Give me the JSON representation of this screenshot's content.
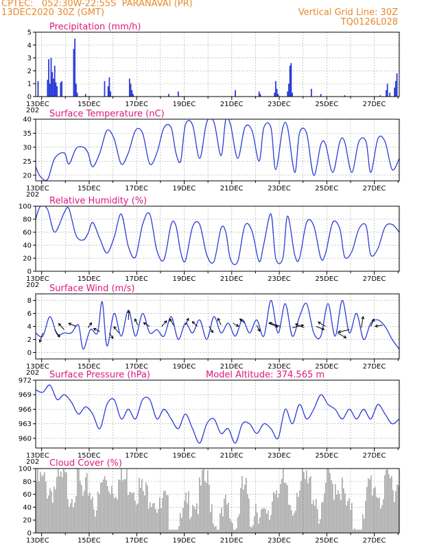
{
  "header": {
    "left_line1": "CPTEC:   052:30W-22:55S  PARANAVAI (PR)",
    "left_line2": "13DEC2020 30Z (GMT)",
    "right_line1": "Vertical Grid Line: 30Z",
    "right_line2": "TQ0126L028"
  },
  "colors": {
    "line": "#2a3bd6",
    "bar": "#2a3bd6",
    "cloud": "#a6a6a6",
    "title": "#e0147c",
    "header": "#e8892b"
  },
  "x_axis": {
    "labels": [
      "13DEC",
      "15DEC",
      "17DEC",
      "19DEC",
      "21DEC",
      "23DEC",
      "25DEC",
      "27DEC"
    ],
    "clipped_year": "202",
    "day_range": [
      13,
      28.3
    ]
  },
  "chart_data": [
    {
      "type": "bar",
      "title": "Precipitation (mm/h)",
      "ylim": [
        0,
        5
      ],
      "yticks": [
        0,
        1,
        2,
        3,
        4,
        5
      ],
      "bars": [
        [
          13.1,
          1.2
        ],
        [
          13.5,
          1.3
        ],
        [
          13.55,
          2.9
        ],
        [
          13.6,
          1.0
        ],
        [
          13.65,
          3.0
        ],
        [
          13.7,
          1.9
        ],
        [
          13.75,
          1.4
        ],
        [
          13.8,
          2.4
        ],
        [
          13.85,
          1.1
        ],
        [
          13.9,
          0.8
        ],
        [
          14.05,
          1.1
        ],
        [
          14.1,
          1.2
        ],
        [
          14.6,
          3.7
        ],
        [
          14.65,
          4.5
        ],
        [
          14.7,
          1.0
        ],
        [
          14.75,
          0.3
        ],
        [
          15.1,
          0.2
        ],
        [
          15.9,
          1.2
        ],
        [
          16.05,
          0.8
        ],
        [
          16.1,
          1.5
        ],
        [
          16.15,
          0.4
        ],
        [
          16.95,
          1.4
        ],
        [
          17.0,
          1.0
        ],
        [
          17.05,
          0.5
        ],
        [
          17.1,
          0.2
        ],
        [
          18.6,
          0.2
        ],
        [
          19.0,
          0.4
        ],
        [
          21.4,
          0.5
        ],
        [
          22.4,
          0.4
        ],
        [
          22.45,
          0.2
        ],
        [
          23.05,
          0.3
        ],
        [
          23.1,
          1.2
        ],
        [
          23.15,
          0.6
        ],
        [
          23.2,
          0.2
        ],
        [
          23.6,
          0.4
        ],
        [
          23.65,
          1.0
        ],
        [
          23.7,
          2.4
        ],
        [
          23.75,
          2.6
        ],
        [
          23.8,
          0.3
        ],
        [
          24.6,
          0.6
        ],
        [
          25.0,
          0.2
        ],
        [
          26.0,
          0.1
        ],
        [
          27.5,
          0.1
        ],
        [
          27.75,
          0.5
        ],
        [
          27.8,
          1.0
        ],
        [
          27.9,
          0.3
        ],
        [
          28.1,
          0.7
        ],
        [
          28.15,
          1.2
        ],
        [
          28.2,
          1.8
        ]
      ]
    },
    {
      "type": "line",
      "title": "Surface Temperature (nC)",
      "ylim": [
        18,
        40
      ],
      "yticks": [
        20,
        25,
        30,
        35,
        40
      ],
      "x": [
        13.0,
        13.2,
        13.5,
        13.8,
        14.2,
        14.4,
        14.7,
        15.0,
        15.2,
        15.4,
        15.7,
        16.0,
        16.3,
        16.6,
        16.9,
        17.2,
        17.5,
        17.8,
        18.1,
        18.4,
        18.7,
        18.9,
        19.1,
        19.3,
        19.6,
        19.9,
        20.2,
        20.5,
        20.8,
        21.0,
        21.2,
        21.5,
        21.8,
        22.1,
        22.4,
        22.6,
        22.9,
        23.1,
        23.4,
        23.6,
        23.9,
        24.1,
        24.4,
        24.7,
        25.0,
        25.2,
        25.5,
        25.8,
        26.0,
        26.3,
        26.6,
        26.9,
        27.1,
        27.4,
        27.7,
        28.0,
        28.3
      ],
      "y": [
        23,
        19.5,
        18.5,
        26,
        28,
        24,
        29.5,
        30,
        28,
        23,
        28,
        36,
        33,
        24,
        28,
        36,
        35,
        24,
        28,
        37,
        37,
        28,
        25,
        38,
        38,
        26,
        39,
        39,
        27,
        40,
        38,
        26,
        37,
        36,
        25,
        37,
        37,
        22,
        37,
        37,
        21,
        35,
        35,
        20,
        31,
        31,
        21,
        32,
        32,
        21,
        32,
        32,
        21,
        33,
        32,
        22,
        26
      ]
    },
    {
      "type": "line",
      "title": "Relative Humidity (%)",
      "ylim": [
        0,
        100
      ],
      "yticks": [
        0,
        20,
        40,
        60,
        80,
        100
      ],
      "x": [
        13.0,
        13.2,
        13.5,
        13.8,
        14.2,
        14.4,
        14.7,
        15.0,
        15.2,
        15.4,
        15.7,
        16.0,
        16.3,
        16.6,
        16.9,
        17.2,
        17.5,
        17.8,
        18.1,
        18.4,
        18.7,
        18.9,
        19.1,
        19.3,
        19.6,
        19.9,
        20.2,
        20.5,
        20.8,
        21.0,
        21.2,
        21.5,
        21.8,
        22.1,
        22.4,
        22.6,
        22.9,
        23.1,
        23.4,
        23.6,
        23.9,
        24.1,
        24.4,
        24.7,
        25.0,
        25.2,
        25.5,
        25.8,
        26.0,
        26.3,
        26.6,
        26.9,
        27.1,
        27.4,
        27.7,
        28.0,
        28.3
      ],
      "y": [
        80,
        100,
        95,
        60,
        90,
        96,
        55,
        48,
        58,
        75,
        50,
        28,
        52,
        88,
        38,
        22,
        72,
        88,
        32,
        18,
        72,
        70,
        30,
        16,
        68,
        72,
        25,
        15,
        66,
        60,
        18,
        15,
        70,
        62,
        15,
        42,
        88,
        20,
        20,
        85,
        25,
        20,
        75,
        70,
        20,
        28,
        75,
        65,
        22,
        30,
        65,
        70,
        25,
        35,
        68,
        72,
        60
      ]
    },
    {
      "type": "line",
      "title": "Surface Wind (m/s)",
      "ylim": [
        -1,
        9
      ],
      "yticks": [
        0,
        2,
        4,
        6,
        8
      ],
      "x": [
        13.0,
        13.3,
        13.6,
        13.9,
        14.2,
        14.5,
        14.8,
        15.0,
        15.3,
        15.6,
        15.8,
        16.0,
        16.3,
        16.6,
        16.9,
        17.2,
        17.5,
        17.8,
        18.1,
        18.4,
        18.7,
        19.0,
        19.3,
        19.6,
        19.9,
        20.2,
        20.5,
        20.8,
        21.1,
        21.4,
        21.7,
        22.0,
        22.3,
        22.6,
        22.9,
        23.2,
        23.5,
        23.8,
        24.1,
        24.4,
        24.7,
        25.0,
        25.3,
        25.6,
        25.9,
        26.2,
        26.5,
        26.8,
        27.1,
        27.4,
        27.7,
        28.0,
        28.3
      ],
      "y": [
        3,
        2.5,
        5.5,
        2.8,
        3,
        3,
        4.2,
        0.5,
        3.5,
        3,
        7.8,
        1,
        6,
        2.5,
        6.5,
        2.5,
        6,
        3,
        3.5,
        2.5,
        5.5,
        2,
        4.5,
        3,
        5,
        2,
        5.5,
        3,
        4.5,
        2.5,
        5,
        3,
        5,
        2.5,
        8,
        3,
        7.5,
        2.5,
        5.5,
        7.5,
        3,
        2.5,
        7.5,
        2.5,
        8,
        3,
        6,
        2,
        4.5,
        5,
        4,
        2,
        0.5
      ],
      "arrows": [
        [
          13.3,
          3,
          -0.5,
          -1.5
        ],
        [
          13.8,
          3.5,
          0.8,
          -1.2
        ],
        [
          14.2,
          3.5,
          -0.9,
          1
        ],
        [
          14.7,
          4,
          -1.2,
          0.5
        ],
        [
          15.2,
          3.8,
          0.6,
          0.8
        ],
        [
          15.7,
          3.2,
          -1,
          0.5
        ],
        [
          16.1,
          3,
          0.6,
          -0.9
        ],
        [
          16.5,
          3,
          -0.8,
          1
        ],
        [
          16.9,
          5,
          0.1,
          1.5
        ],
        [
          17.3,
          4.2,
          -0.5,
          1
        ],
        [
          17.8,
          4,
          -1,
          0.6
        ],
        [
          18.3,
          4,
          0.8,
          0.9
        ],
        [
          18.8,
          4.2,
          -0.6,
          1
        ],
        [
          19.3,
          4.2,
          0.5,
          1.1
        ],
        [
          19.8,
          4,
          -0.8,
          0.8
        ],
        [
          20.3,
          4,
          0.6,
          -1
        ],
        [
          20.8,
          4.2,
          -0.5,
          1.1
        ],
        [
          21.3,
          4.5,
          0.9,
          -0.5
        ],
        [
          21.8,
          4.5,
          -0.8,
          0.7
        ],
        [
          22.3,
          4.2,
          0.5,
          -1
        ],
        [
          22.8,
          4.5,
          1.5,
          -0.6
        ],
        [
          23.3,
          4,
          -1.8,
          0.6
        ],
        [
          23.8,
          3.8,
          1.8,
          0.4
        ],
        [
          24.3,
          3.8,
          -1.4,
          0.6
        ],
        [
          24.8,
          4,
          1.3,
          -0.5
        ],
        [
          25.2,
          4,
          -1.2,
          0.7
        ],
        [
          25.7,
          3,
          1.4,
          -0.8
        ],
        [
          26.2,
          3.5,
          -1.8,
          -0.4
        ],
        [
          26.7,
          3.8,
          0.3,
          1.8
        ],
        [
          27.1,
          4,
          0.5,
          1.2
        ],
        [
          27.6,
          4.2,
          -1.2,
          -0.2
        ]
      ]
    },
    {
      "type": "line",
      "title": "Surface Pressure (hPa)",
      "annotation": "Model Altitude: 374.565  m",
      "ylim": [
        958,
        972
      ],
      "yticks": [
        960,
        963,
        966,
        969,
        972
      ],
      "x": [
        13.0,
        13.3,
        13.6,
        13.9,
        14.2,
        14.5,
        14.8,
        15.1,
        15.4,
        15.7,
        16.0,
        16.3,
        16.6,
        16.9,
        17.2,
        17.5,
        17.8,
        18.1,
        18.4,
        18.7,
        19.0,
        19.3,
        19.6,
        19.9,
        20.2,
        20.5,
        20.8,
        21.1,
        21.4,
        21.7,
        22.0,
        22.3,
        22.6,
        22.9,
        23.2,
        23.5,
        23.8,
        24.1,
        24.4,
        24.7,
        25.0,
        25.3,
        25.6,
        25.9,
        26.2,
        26.5,
        26.8,
        27.1,
        27.4,
        27.7,
        28.0,
        28.3
      ],
      "y": [
        970,
        969.5,
        971,
        968,
        969,
        967.5,
        965,
        966.5,
        965,
        962,
        967,
        968,
        964,
        966,
        964,
        968,
        968,
        964,
        966,
        964,
        962,
        965,
        962,
        959,
        963,
        964,
        961,
        962,
        959,
        963,
        963,
        961,
        963,
        962,
        960,
        966,
        963,
        967,
        964,
        966,
        969,
        967,
        966,
        964,
        966,
        964,
        966,
        964,
        967,
        965,
        963,
        964
      ]
    },
    {
      "type": "bar",
      "title": "Cloud Cover (%)",
      "ylim": [
        0,
        100
      ],
      "yticks": [
        0,
        20,
        40,
        60,
        80,
        100
      ],
      "series_profile": {
        "x": [
          13.0,
          13.2,
          13.4,
          13.6,
          13.8,
          14.0,
          14.2,
          14.4,
          14.6,
          14.8,
          15.0,
          15.2,
          15.4,
          15.6,
          15.8,
          16.0,
          16.2,
          16.4,
          16.6,
          16.8,
          17.0,
          17.2,
          17.4,
          17.6,
          17.8,
          18.0,
          18.2,
          18.4,
          18.6,
          18.8,
          19.0,
          19.2,
          19.4,
          19.6,
          19.8,
          20.0,
          20.2,
          20.4,
          20.6,
          20.8,
          21.0,
          21.2,
          21.4,
          21.6,
          21.8,
          22.0,
          22.2,
          22.4,
          22.6,
          22.8,
          23.0,
          23.2,
          23.4,
          23.6,
          23.8,
          24.0,
          24.2,
          24.4,
          24.6,
          24.8,
          25.0,
          25.2,
          25.4,
          25.6,
          25.8,
          26.0,
          26.2,
          26.4,
          26.6,
          26.8,
          27.0,
          27.2,
          27.4,
          27.6,
          27.8,
          28.0,
          28.3
        ],
        "y": [
          95,
          92,
          90,
          85,
          88,
          90,
          94,
          80,
          86,
          96,
          60,
          90,
          70,
          55,
          95,
          93,
          92,
          92,
          96,
          96,
          98,
          88,
          80,
          70,
          85,
          75,
          45,
          60,
          40,
          20,
          10,
          40,
          60,
          75,
          60,
          92,
          93,
          60,
          25,
          30,
          55,
          40,
          20,
          70,
          90,
          25,
          65,
          55,
          30,
          30,
          88,
          96,
          85,
          60,
          50,
          96,
          92,
          88,
          85,
          70,
          30,
          92,
          90,
          95,
          90,
          60,
          40,
          30,
          25,
          25,
          95,
          92,
          80,
          65,
          96,
          93,
          90
        ]
      }
    }
  ]
}
